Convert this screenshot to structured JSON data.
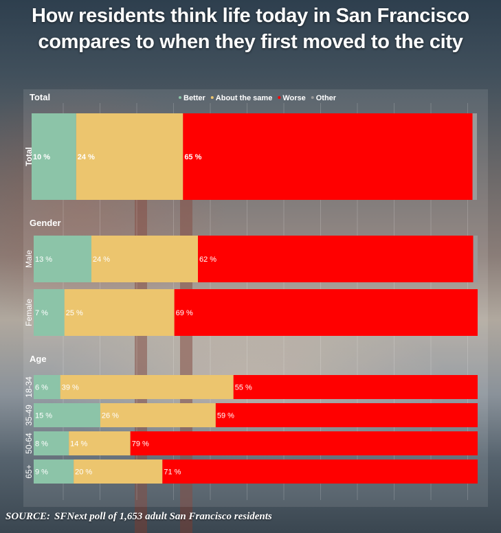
{
  "title_lines": [
    "How residents think life today in San Francisco",
    "compares to when they first moved to the city"
  ],
  "source": {
    "label": "SOURCE:",
    "text": "SFNext poll of 1,653 adult San Francisco residents"
  },
  "colors": {
    "Better": "#8cc4a8",
    "About the same": "#ecc56e",
    "Worse": "#ff0000",
    "Other": "#9a9a9a"
  },
  "chart_data": {
    "type": "bar",
    "orientation": "horizontal",
    "stacked": true,
    "percent_suffix": " %",
    "legend": {
      "placement": "top",
      "entries": [
        "Better",
        "About the same",
        "Worse",
        "Other"
      ]
    },
    "groups": [
      {
        "label": "Total",
        "rows": [
          {
            "label": "Total",
            "values": {
              "Better": 10,
              "About the same": 24,
              "Worse": 65,
              "Other": 1
            }
          }
        ]
      },
      {
        "label": "Gender",
        "rows": [
          {
            "label": "Male",
            "values": {
              "Better": 13,
              "About the same": 24,
              "Worse": 62,
              "Other": 1
            }
          },
          {
            "label": "Female",
            "values": {
              "Better": 7,
              "About the same": 25,
              "Worse": 69,
              "Other": 0
            }
          }
        ]
      },
      {
        "label": "Age",
        "rows": [
          {
            "label": "18-34",
            "values": {
              "Better": 6,
              "About the same": 39,
              "Worse": 55,
              "Other": 0
            }
          },
          {
            "label": "35-49",
            "values": {
              "Better": 15,
              "About the same": 26,
              "Worse": 59,
              "Other": 0
            }
          },
          {
            "label": "50-64",
            "values": {
              "Better": 8,
              "About the same": 14,
              "Worse": 79,
              "Other": 0
            }
          },
          {
            "label": "65+",
            "values": {
              "Better": 9,
              "About the same": 20,
              "Worse": 71,
              "Other": 0
            }
          }
        ]
      }
    ]
  }
}
